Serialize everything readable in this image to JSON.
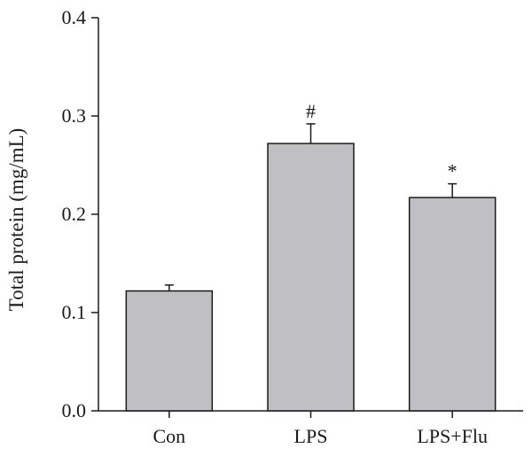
{
  "chart_data": {
    "type": "bar",
    "categories": [
      "Con",
      "LPS",
      "LPS+Flu"
    ],
    "values": [
      0.122,
      0.272,
      0.217
    ],
    "errors": [
      0.006,
      0.02,
      0.014
    ],
    "annotations": [
      "",
      "#",
      "*"
    ],
    "ylabel": "Total protein (mg/mL)",
    "xlabel": "",
    "ylim": [
      0,
      0.4
    ],
    "yticks": [
      {
        "value": 0.0,
        "label": "0.0"
      },
      {
        "value": 0.1,
        "label": "0.1"
      },
      {
        "value": 0.2,
        "label": "0.2"
      },
      {
        "value": 0.3,
        "label": "0.3"
      },
      {
        "value": 0.4,
        "label": "0.4"
      }
    ],
    "grid": false,
    "bar_color": "#c0c0c4",
    "edge_color": "#1a1a1a"
  }
}
